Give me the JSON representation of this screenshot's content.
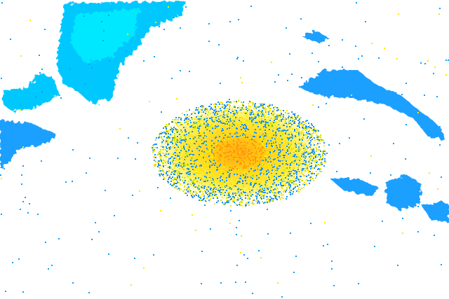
{
  "radar": {
    "background": "#ffffff",
    "palette": {
      "light_blue": "#00c8ff",
      "cyan": "#00e8ff",
      "blue": "#1e90ff",
      "mid_blue": "#0aa0ff",
      "green_yellow": "#c8e600",
      "yellow": "#ffe600",
      "gold": "#ffc800",
      "orange": "#ff9600"
    }
  }
}
